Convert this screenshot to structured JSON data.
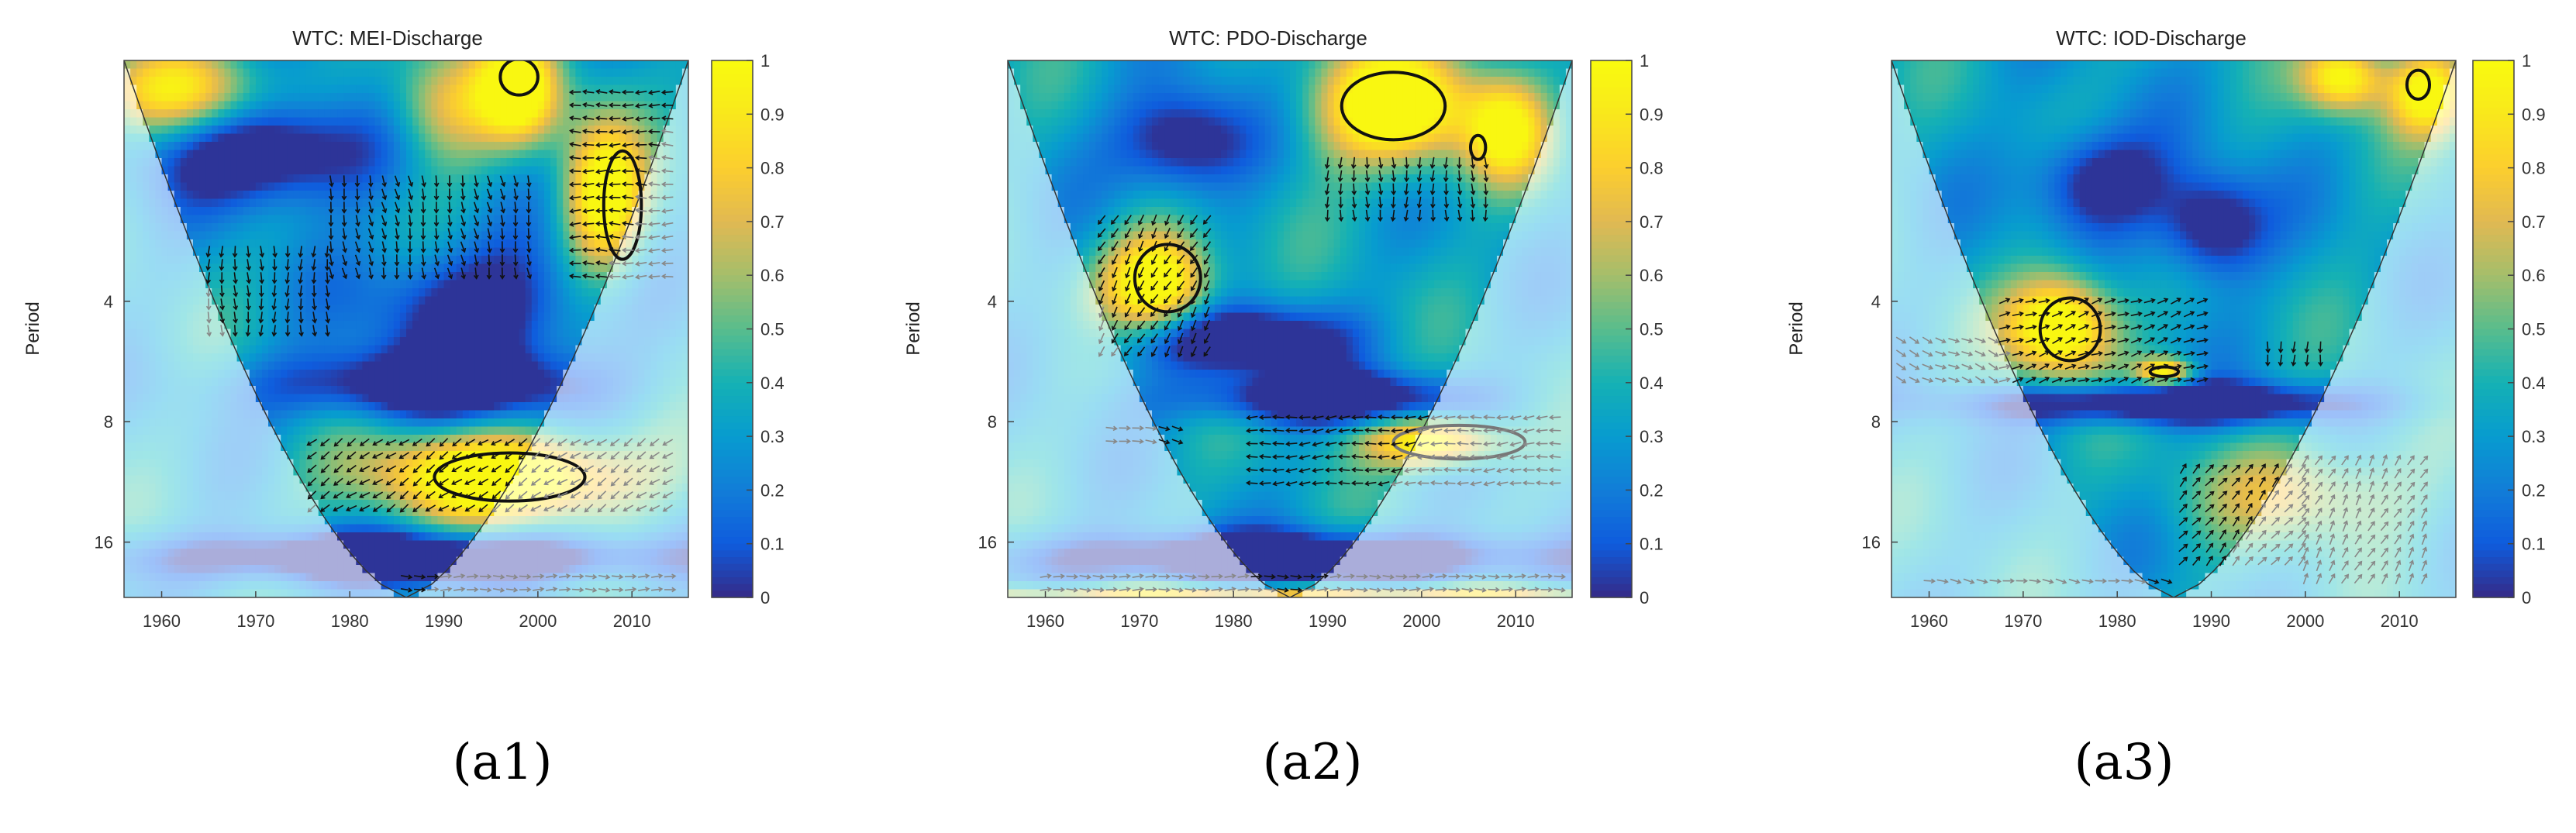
{
  "chart_data": [
    {
      "type": "heatmap",
      "title": "WTC: MEI-Discharge",
      "panel_label": "(a1)",
      "ylabel": "Period",
      "xlim": [
        1956,
        2016
      ],
      "ylim_period": [
        1,
        22
      ],
      "y_scale": "log2",
      "x_ticks": [
        "1960",
        "1970",
        "1980",
        "1990",
        "2000",
        "2010"
      ],
      "y_ticks": [
        "4",
        "8",
        "16"
      ],
      "colorbar": {
        "min": 0,
        "max": 1,
        "ticks": [
          "0",
          "0.1",
          "0.2",
          "0.3",
          "0.4",
          "0.5",
          "0.6",
          "0.7",
          "0.8",
          "0.9",
          "1"
        ]
      },
      "coi_min_year": 1986,
      "blobs": [
        {
          "year": 1962,
          "period": 1.2,
          "dx": 6,
          "dp": 0.25,
          "v": 0.55
        },
        {
          "year": 1972,
          "period": 1.7,
          "dx": 8,
          "dp": 0.3,
          "v": -0.55
        },
        {
          "year": 1990,
          "period": 1.3,
          "dx": 4,
          "dp": 0.35,
          "v": 0.45
        },
        {
          "year": 1998,
          "period": 1.2,
          "dx": 3,
          "dp": 0.3,
          "v": 0.8
        },
        {
          "year": 2007,
          "period": 2.2,
          "dx": 3,
          "dp": 0.45,
          "v": 0.75
        },
        {
          "year": 1994,
          "period": 4.2,
          "dx": 8,
          "dp": 0.4,
          "v": -0.45
        },
        {
          "year": 1988,
          "period": 6.5,
          "dx": 12,
          "dp": 0.2,
          "v": -0.5
        },
        {
          "year": 1996,
          "period": 11.0,
          "dx": 10,
          "dp": 0.25,
          "v": 0.85
        },
        {
          "year": 1986,
          "period": 17.5,
          "dx": 20,
          "dp": 0.15,
          "v": -0.6
        }
      ],
      "contours": [
        {
          "year": 1997,
          "period": 11.0,
          "dx": 8,
          "dp": 0.2
        },
        {
          "year": 2009,
          "period": 2.3,
          "dx": 2,
          "dp": 0.45
        },
        {
          "year": 1998,
          "period": 1.1,
          "dx": 2,
          "dp": 0.15
        }
      ],
      "arrow_regions": [
        {
          "y0": 1965,
          "y1": 1978,
          "p0": 3.0,
          "p1": 5.0,
          "angle": 270
        },
        {
          "y0": 1978,
          "y1": 2000,
          "p0": 2.0,
          "p1": 3.5,
          "angle": 280
        },
        {
          "y0": 1976,
          "y1": 2015,
          "p0": 9.0,
          "p1": 13.5,
          "angle": 215
        },
        {
          "y0": 2004,
          "y1": 2015,
          "p0": 1.2,
          "p1": 3.5,
          "angle": 180
        },
        {
          "y0": 1986,
          "y1": 2015,
          "p0": 19.5,
          "p1": 21.5,
          "angle": 0
        }
      ]
    },
    {
      "type": "heatmap",
      "title": "WTC: PDO-Discharge",
      "panel_label": "(a2)",
      "ylabel": "Period",
      "xlim": [
        1956,
        2016
      ],
      "ylim_period": [
        1,
        22
      ],
      "y_scale": "log2",
      "x_ticks": [
        "1960",
        "1970",
        "1980",
        "1990",
        "2000",
        "2010"
      ],
      "y_ticks": [
        "4",
        "8",
        "16"
      ],
      "colorbar": {
        "min": 0,
        "max": 1,
        "ticks": [
          "0",
          "0.1",
          "0.2",
          "0.3",
          "0.4",
          "0.5",
          "0.6",
          "0.7",
          "0.8",
          "0.9",
          "1"
        ]
      },
      "coi_min_year": 1986,
      "blobs": [
        {
          "year": 1972,
          "period": 3.6,
          "dx": 4,
          "dp": 0.3,
          "v": 0.85
        },
        {
          "year": 1997,
          "period": 1.3,
          "dx": 6,
          "dp": 0.35,
          "v": 0.85
        },
        {
          "year": 2009,
          "period": 1.5,
          "dx": 3,
          "dp": 0.3,
          "v": 0.6
        },
        {
          "year": 1980,
          "period": 5.0,
          "dx": 8,
          "dp": 0.2,
          "v": -0.55
        },
        {
          "year": 1975,
          "period": 1.6,
          "dx": 5,
          "dp": 0.3,
          "v": -0.5
        },
        {
          "year": 1990,
          "period": 7.0,
          "dx": 10,
          "dp": 0.15,
          "v": -0.55
        },
        {
          "year": 2001,
          "period": 9.0,
          "dx": 5,
          "dp": 0.15,
          "v": 0.7
        },
        {
          "year": 1986,
          "period": 17.5,
          "dx": 20,
          "dp": 0.15,
          "v": -0.6
        },
        {
          "year": 1986,
          "period": 21.5,
          "dx": 30,
          "dp": 0.05,
          "v": 0.5
        }
      ],
      "contours": [
        {
          "year": 1973,
          "period": 3.5,
          "dx": 3.5,
          "dp": 0.28
        },
        {
          "year": 1997,
          "period": 1.3,
          "dx": 5.5,
          "dp": 0.28
        },
        {
          "year": 2006,
          "period": 1.65,
          "dx": 0.8,
          "dp": 0.1
        },
        {
          "year": 2004,
          "period": 9.0,
          "dx": 7,
          "dp": 0.14
        }
      ],
      "arrow_regions": [
        {
          "y0": 1966,
          "y1": 1978,
          "p0": 2.5,
          "p1": 5.5,
          "angle": 240
        },
        {
          "y0": 1990,
          "y1": 2008,
          "p0": 1.8,
          "p1": 2.6,
          "angle": 270
        },
        {
          "y0": 1967,
          "y1": 1975,
          "p0": 8.3,
          "p1": 9.0,
          "angle": 350
        },
        {
          "y0": 1982,
          "y1": 2015,
          "p0": 7.8,
          "p1": 12.0,
          "angle": 185
        },
        {
          "y0": 1960,
          "y1": 2015,
          "p0": 19.5,
          "p1": 21.5,
          "angle": 0
        }
      ]
    },
    {
      "type": "heatmap",
      "title": "WTC: IOD-Discharge",
      "panel_label": "(a3)",
      "ylabel": "Period",
      "xlim": [
        1956,
        2016
      ],
      "ylim_period": [
        1,
        22
      ],
      "y_scale": "log2",
      "x_ticks": [
        "1960",
        "1970",
        "1980",
        "1990",
        "2000",
        "2010"
      ],
      "y_ticks": [
        "4",
        "8",
        "16"
      ],
      "colorbar": {
        "min": 0,
        "max": 1,
        "ticks": [
          "0",
          "0.1",
          "0.2",
          "0.3",
          "0.4",
          "0.5",
          "0.6",
          "0.7",
          "0.8",
          "0.9",
          "1"
        ]
      },
      "coi_min_year": 1986,
      "blobs": [
        {
          "year": 1974,
          "period": 4.6,
          "dx": 4,
          "dp": 0.3,
          "v": 0.85
        },
        {
          "year": 2004,
          "period": 1.1,
          "dx": 3,
          "dp": 0.2,
          "v": 0.7
        },
        {
          "year": 2013,
          "period": 1.2,
          "dx": 3,
          "dp": 0.25,
          "v": 0.7
        },
        {
          "year": 1985,
          "period": 6.0,
          "dx": 2,
          "dp": 0.08,
          "v": 0.7
        },
        {
          "year": 1990,
          "period": 2.6,
          "dx": 4,
          "dp": 0.3,
          "v": -0.5
        },
        {
          "year": 1985,
          "period": 7.2,
          "dx": 14,
          "dp": 0.12,
          "v": -0.6
        },
        {
          "year": 1978,
          "period": 2.0,
          "dx": 5,
          "dp": 0.3,
          "v": -0.45
        },
        {
          "year": 2000,
          "period": 12.0,
          "dx": 8,
          "dp": 0.3,
          "v": 0.35
        }
      ],
      "contours": [
        {
          "year": 1975,
          "period": 4.7,
          "dx": 3.2,
          "dp": 0.26
        },
        {
          "year": 1985,
          "period": 6.0,
          "dx": 1.5,
          "dp": 0.04
        },
        {
          "year": 2012,
          "period": 1.15,
          "dx": 1.2,
          "dp": 0.12
        }
      ],
      "arrow_regions": [
        {
          "y0": 1957,
          "y1": 1968,
          "p0": 5.0,
          "p1": 6.3,
          "angle": 335
        },
        {
          "y0": 1968,
          "y1": 1990,
          "p0": 4.0,
          "p1": 6.5,
          "angle": 20
        },
        {
          "y0": 1996,
          "y1": 2003,
          "p0": 5.2,
          "p1": 6.0,
          "angle": 270
        },
        {
          "y0": 1987,
          "y1": 2000,
          "p0": 10.5,
          "p1": 19.0,
          "angle": 50
        },
        {
          "y0": 2000,
          "y1": 2014,
          "p0": 10.0,
          "p1": 21.0,
          "angle": 60
        },
        {
          "y0": 1960,
          "y1": 1986,
          "p0": 20.0,
          "p1": 21.5,
          "angle": 350
        }
      ]
    }
  ]
}
